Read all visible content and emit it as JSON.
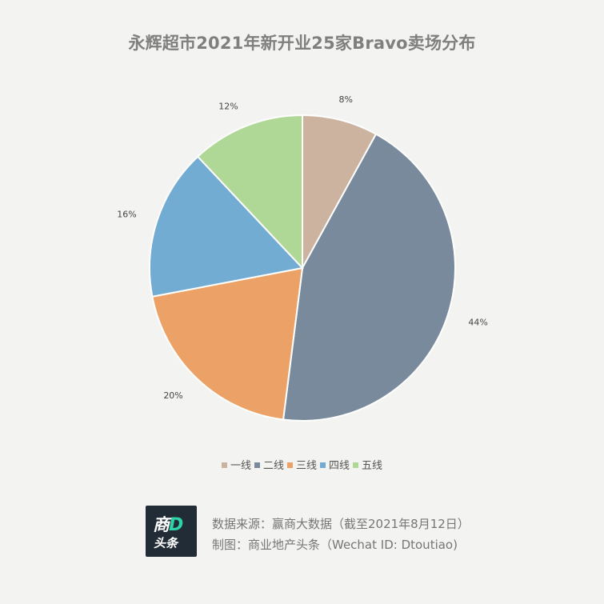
{
  "chart_data": {
    "type": "pie",
    "title": "永辉超市2021年新开业25家Bravo卖场分布",
    "categories": [
      "一线",
      "二线",
      "三线",
      "四线",
      "五线"
    ],
    "values": [
      8,
      44,
      20,
      16,
      12
    ],
    "labels": [
      "8%",
      "44%",
      "20%",
      "16%",
      "12%"
    ],
    "colors": [
      "#cbb3a0",
      "#788a9c",
      "#eca266",
      "#73acd2",
      "#afd896"
    ],
    "legend_position": "bottom"
  },
  "footer": {
    "logo_main": "商",
    "logo_accent": "D",
    "logo_sub": "头条",
    "source": "数据来源：赢商大数据（截至2021年8月12日）",
    "made_by": "制图：商业地产头条（Wechat ID: Dtoutiao)"
  }
}
